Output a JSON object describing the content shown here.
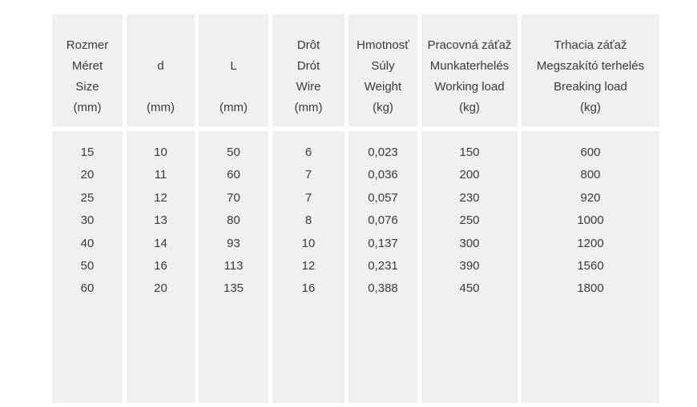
{
  "colors": {
    "page_bg": "#ffffff",
    "cell_bg": "#f0f0f0",
    "text": "#3a3a3a"
  },
  "table": {
    "columns": [
      {
        "id": "size",
        "header_lines": [
          "Rozmer",
          "Méret",
          "Size",
          "(mm)"
        ]
      },
      {
        "id": "d",
        "header_lines": [
          "",
          "d",
          "",
          "(mm)"
        ]
      },
      {
        "id": "l",
        "header_lines": [
          "",
          "L",
          "",
          "(mm)"
        ]
      },
      {
        "id": "wire",
        "header_lines": [
          "Drôt",
          "Drót",
          "Wire",
          "(mm)"
        ]
      },
      {
        "id": "weight",
        "header_lines": [
          "Hmotnosť",
          "Súly",
          "Weight",
          "(kg)"
        ]
      },
      {
        "id": "working-load",
        "header_lines": [
          "Pracovná záťaž",
          "Munkaterhelés",
          "Working load",
          "(kg)"
        ]
      },
      {
        "id": "breaking-load",
        "header_lines": [
          "Trhacia záťaž",
          "Megszakító terhelés",
          "Breaking load",
          "(kg)"
        ]
      }
    ],
    "rows": [
      [
        "15",
        "10",
        "50",
        "6",
        "0,023",
        "150",
        "600"
      ],
      [
        "20",
        "11",
        "60",
        "7",
        "0,036",
        "200",
        "800"
      ],
      [
        "25",
        "12",
        "70",
        "7",
        "0,057",
        "230",
        "920"
      ],
      [
        "30",
        "13",
        "80",
        "8",
        "0,076",
        "250",
        "1000"
      ],
      [
        "40",
        "14",
        "93",
        "10",
        "0,137",
        "300",
        "1200"
      ],
      [
        "50",
        "16",
        "113",
        "12",
        "0,231",
        "390",
        "1560"
      ],
      [
        "60",
        "20",
        "135",
        "16",
        "0,388",
        "450",
        "1800"
      ]
    ]
  }
}
